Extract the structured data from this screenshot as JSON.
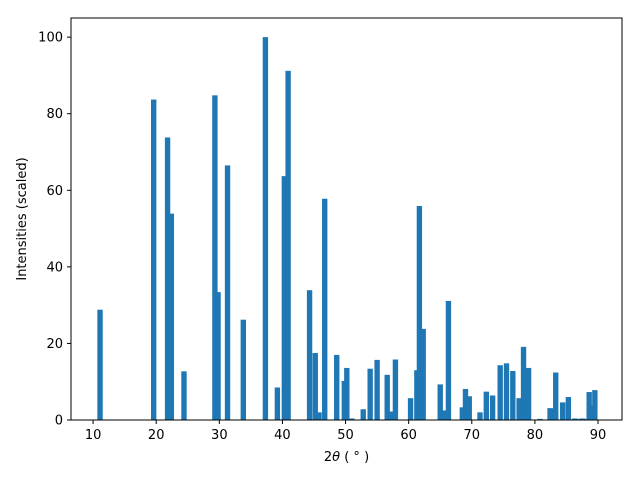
{
  "chart_data": {
    "type": "bar",
    "xlabel_prefix": "2",
    "xlabel_symbol": "θ",
    "xlabel_unit": " ( ° )",
    "ylabel": "Intensities (scaled)",
    "xlim": [
      6.5,
      93.8
    ],
    "ylim": [
      0,
      105
    ],
    "xticks": [
      10,
      20,
      30,
      40,
      50,
      60,
      70,
      80,
      90
    ],
    "yticks": [
      0,
      20,
      40,
      60,
      80,
      100
    ],
    "bar_width": 0.85,
    "color": "#1f77b4",
    "grid": false,
    "x": [
      11.1,
      19.6,
      21.8,
      22.4,
      24.4,
      29.3,
      29.8,
      31.3,
      33.8,
      37.3,
      39.2,
      40.3,
      40.9,
      44.3,
      45.2,
      45.8,
      46.7,
      48.6,
      49.8,
      50.2,
      51.0,
      52.8,
      53.9,
      55.0,
      56.6,
      57.2,
      57.9,
      60.3,
      61.3,
      61.7,
      62.3,
      65.0,
      65.5,
      66.3,
      68.5,
      69.0,
      69.6,
      71.3,
      72.3,
      73.3,
      74.5,
      75.5,
      76.5,
      77.5,
      78.2,
      78.6,
      79.0,
      80.8,
      82.4,
      82.7,
      83.3,
      84.4,
      85.3,
      86.3,
      87.0,
      87.5,
      88.0,
      88.6,
      89.0,
      89.5
    ],
    "values": [
      28.8,
      83.7,
      73.8,
      53.9,
      12.7,
      84.8,
      33.4,
      66.5,
      26.2,
      100,
      8.5,
      63.7,
      91.2,
      33.9,
      17.5,
      2.0,
      57.8,
      17.0,
      10.2,
      13.6,
      0.4,
      2.8,
      13.4,
      15.7,
      11.8,
      2.2,
      15.8,
      5.7,
      13.0,
      55.9,
      23.8,
      9.3,
      2.5,
      31.1,
      3.3,
      8.1,
      6.2,
      2.0,
      7.4,
      6.4,
      14.3,
      14.8,
      12.8,
      5.7,
      19.1,
      0.4,
      13.6,
      0.3,
      3.1,
      3.0,
      12.4,
      4.6,
      6.0,
      0.4,
      0.3,
      0.4,
      0.3,
      7.3,
      3.8,
      7.8
    ]
  }
}
